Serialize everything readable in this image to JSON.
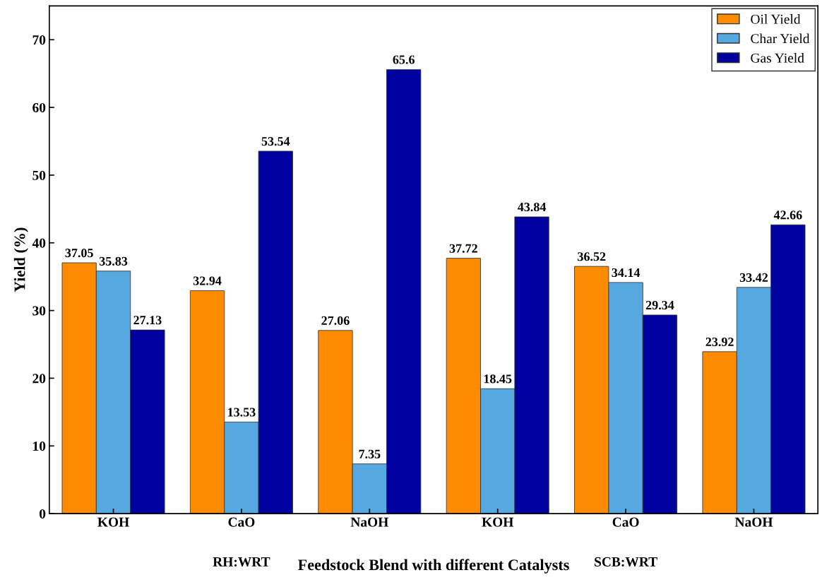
{
  "chart_data": {
    "type": "bar",
    "xlabel": "Feedstock Blend with different Catalysts",
    "ylabel": "Yield (%)",
    "categories": [
      "KOH",
      "CaO",
      "NaOH",
      "KOH",
      "CaO",
      "NaOH"
    ],
    "series": [
      {
        "name": "Oil Yield",
        "color": "#ff8c00",
        "values": [
          37.05,
          32.94,
          27.06,
          37.72,
          36.52,
          23.92
        ]
      },
      {
        "name": "Char Yield",
        "color": "#55a8e0",
        "values": [
          35.83,
          13.53,
          7.35,
          18.45,
          34.14,
          33.42
        ]
      },
      {
        "name": "Gas Yield",
        "color": "#00009f",
        "values": [
          27.13,
          53.54,
          65.6,
          43.84,
          29.34,
          42.66
        ]
      }
    ],
    "annotations": [
      "RH:WRT",
      "SCB:WRT"
    ],
    "ylim": [
      0,
      75
    ],
    "yticks": [
      0,
      10,
      20,
      30,
      40,
      50,
      60,
      70
    ],
    "data_labels": true,
    "legend": "top right",
    "grid": false
  }
}
